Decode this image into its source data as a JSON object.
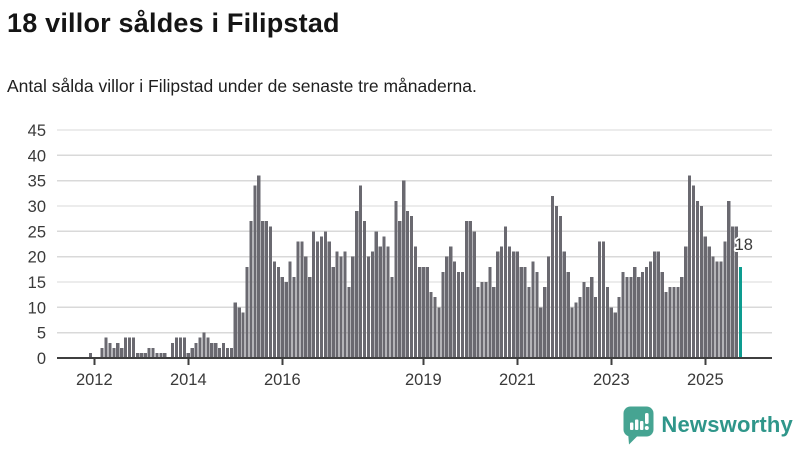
{
  "title": "18 villor såldes i Filipstad",
  "subtitle": "Antal sålda villor i Filipstad under de senaste tre månaderna.",
  "annotation": "18",
  "logo": {
    "text": "Newsworthy",
    "text_color": "#2f968a",
    "icon_color": "#46a492",
    "icon": "newsworthy-bubble-chart-icon"
  },
  "chart_data": {
    "type": "bar",
    "title": "18 villor såldes i Filipstad",
    "subtitle": "Antal sålda villor i Filipstad under de senaste tre månaderna.",
    "xlabel": "",
    "ylabel": "",
    "unit": "sålda villor (rullande 3 månader)",
    "grid": true,
    "ylim": [
      0,
      45
    ],
    "y_ticks": [
      0,
      5,
      10,
      15,
      20,
      25,
      30,
      35,
      40,
      45
    ],
    "x_tick_labels": [
      "2012",
      "2014",
      "2016",
      "2019",
      "2021",
      "2023",
      "2025"
    ],
    "start_month": "2011-10",
    "months_per_bar": 1,
    "values": [
      0,
      0,
      1,
      0,
      0,
      2,
      4,
      3,
      2,
      3,
      2,
      4,
      4,
      4,
      1,
      1,
      1,
      2,
      2,
      1,
      1,
      1,
      0,
      3,
      4,
      4,
      4,
      1,
      2,
      3,
      4,
      5,
      4,
      3,
      3,
      2,
      3,
      2,
      2,
      11,
      10,
      9,
      18,
      27,
      34,
      36,
      27,
      27,
      26,
      19,
      18,
      16,
      15,
      19,
      16,
      23,
      23,
      20,
      16,
      25,
      23,
      24,
      25,
      23,
      18,
      21,
      20,
      21,
      14,
      20,
      29,
      34,
      27,
      20,
      21,
      25,
      22,
      24,
      22,
      16,
      31,
      27,
      35,
      29,
      28,
      22,
      18,
      18,
      18,
      13,
      12,
      10,
      17,
      20,
      22,
      19,
      17,
      17,
      27,
      27,
      25,
      14,
      15,
      15,
      18,
      14,
      21,
      22,
      26,
      22,
      21,
      21,
      18,
      18,
      14,
      19,
      17,
      10,
      14,
      20,
      32,
      30,
      28,
      21,
      17,
      10,
      11,
      12,
      15,
      14,
      16,
      12,
      23,
      23,
      14,
      10,
      9,
      12,
      17,
      16,
      16,
      18,
      16,
      17,
      18,
      19,
      21,
      21,
      17,
      13,
      14,
      14,
      14,
      16,
      22,
      36,
      34,
      31,
      30,
      24,
      22,
      20,
      19,
      19,
      23,
      31,
      26,
      26,
      18
    ],
    "highlight_last_bar": true,
    "highlight_value": 18,
    "highlight_label": "18",
    "colors": {
      "bar": "#6a6970",
      "highlight": "#0d9c90",
      "gridline": "#d9d9d9",
      "axis_line": "#3f3f3f",
      "axis_text": "#3a3a3a",
      "annotation_text": "#3a3a3a",
      "annotation_halo": "#ffffff"
    },
    "legend": null
  }
}
